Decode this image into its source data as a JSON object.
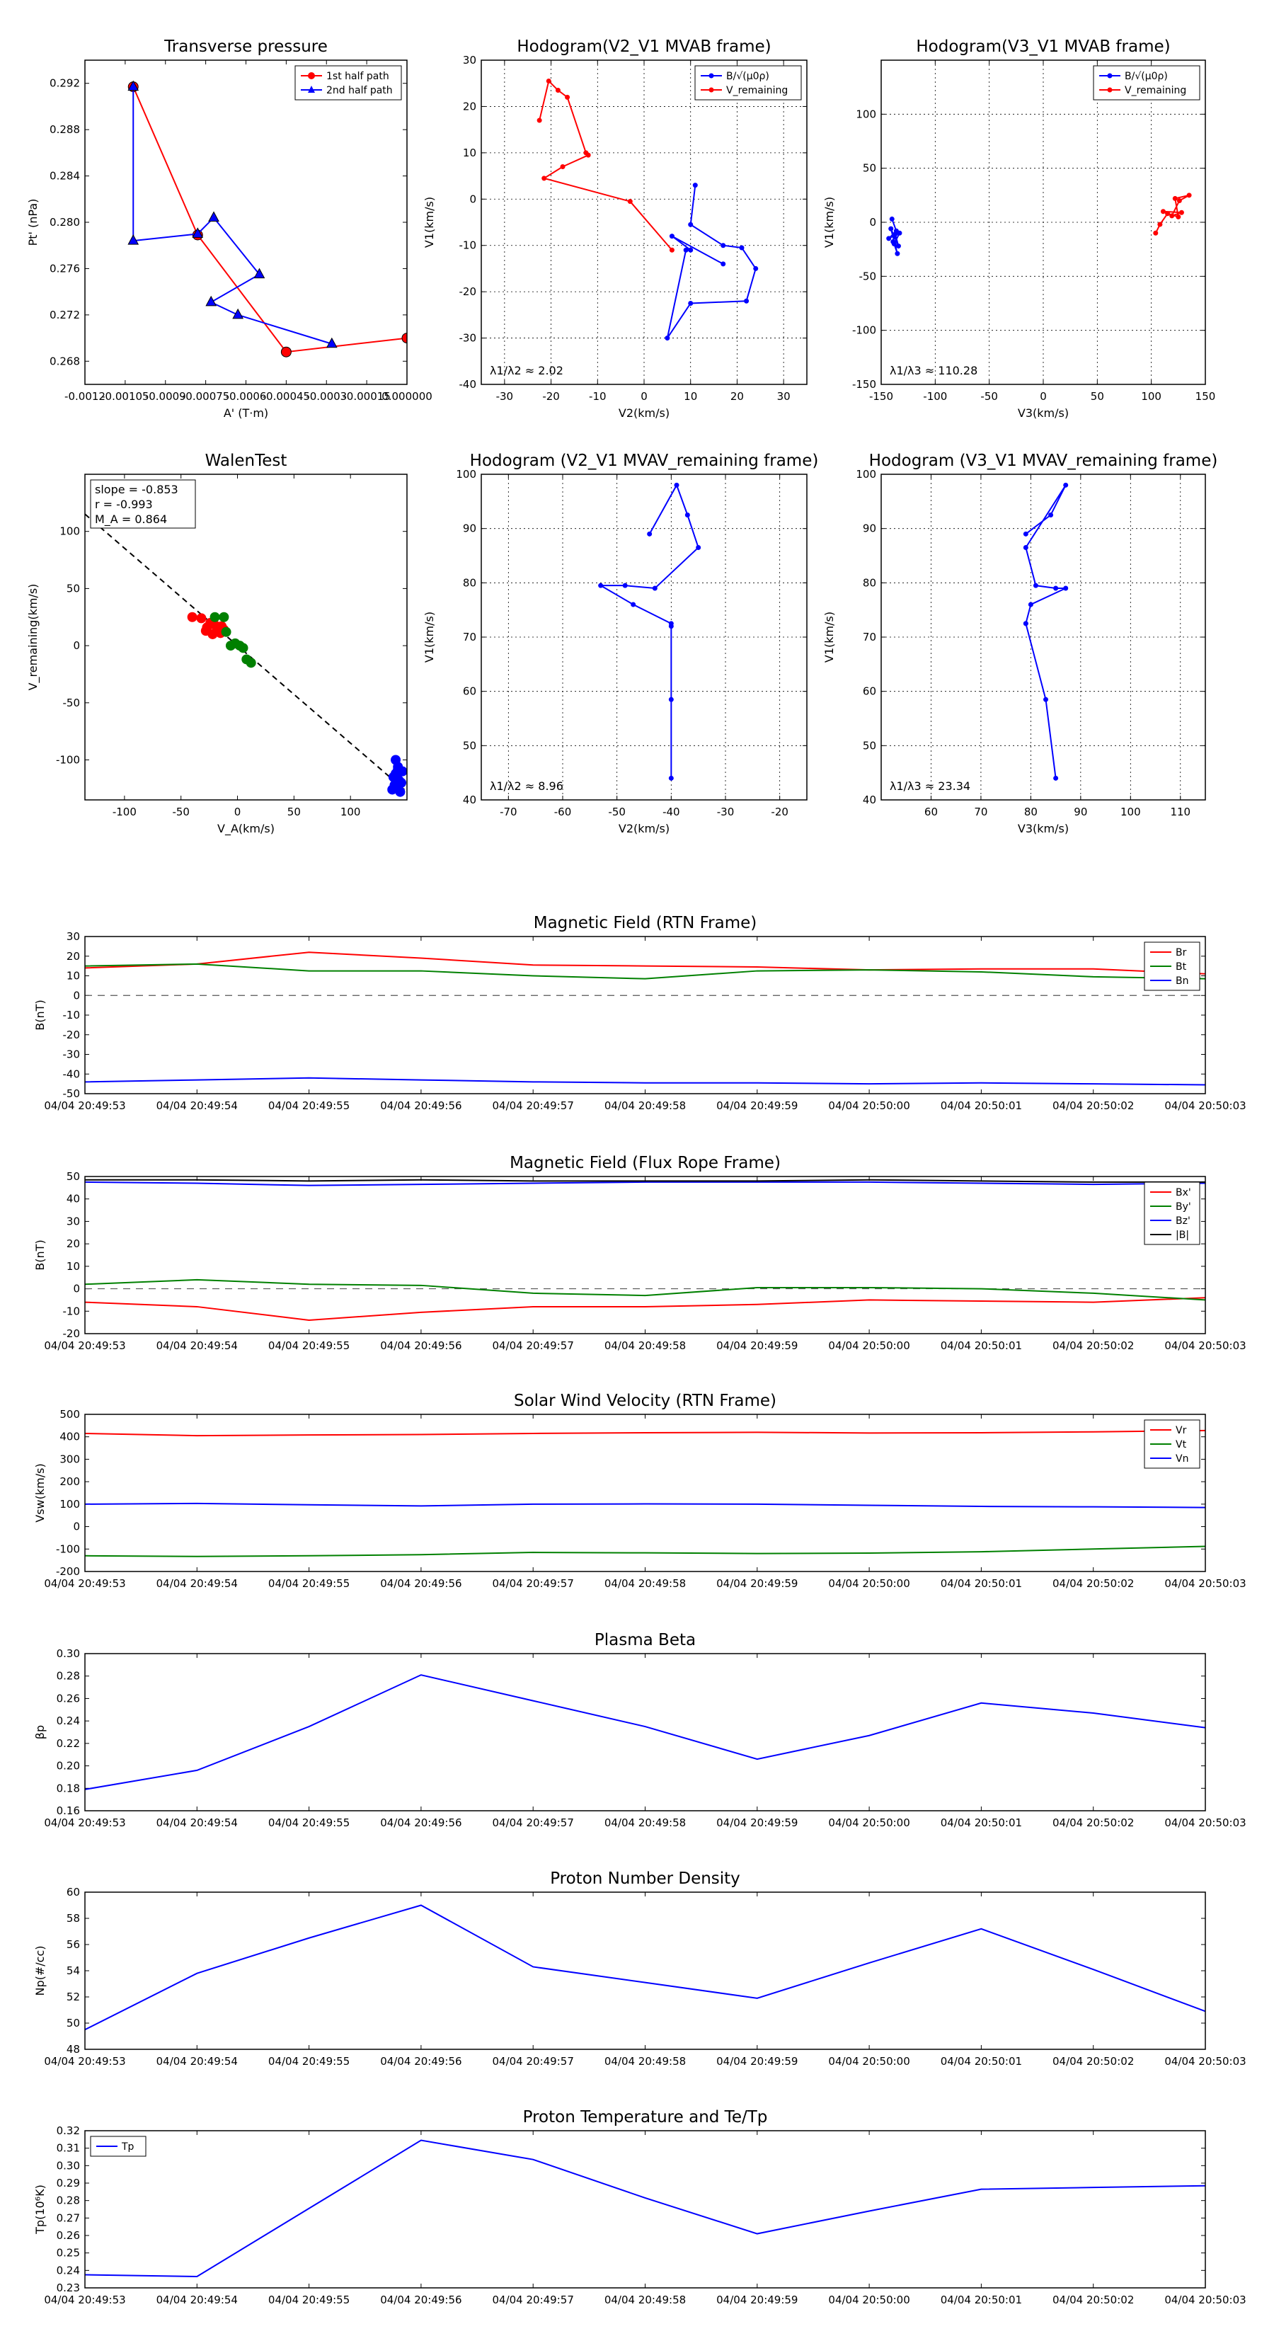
{
  "chart_data": [
    {
      "id": "tp",
      "type": "line",
      "title": "Transverse pressure",
      "xlabel": "A' (T·m)",
      "ylabel": "Pt' (nPa)",
      "xlim": [
        -0.0012,
        0.0
      ],
      "ylim": [
        0.266,
        0.294
      ],
      "xticks": [
        -0.0012,
        -0.00105,
        -0.0009,
        -0.00075,
        -0.0006,
        -0.00045,
        -0.0003,
        -0.00015,
        0.0
      ],
      "xtick_labels": [
        "-0.0012",
        "-0.00105",
        "-0.0009",
        "-0.00075",
        "-0.0006",
        "-0.00045",
        "-0.0003",
        "-0.00015",
        "0.000000"
      ],
      "yticks": [
        0.268,
        0.272,
        0.276,
        0.28,
        0.284,
        0.288,
        0.292
      ],
      "ytick_labels": [
        "0.268",
        "0.272",
        "0.276",
        "0.280",
        "0.284",
        "0.288",
        "0.292"
      ],
      "legend": "top-right",
      "series": [
        {
          "name": "1st half path",
          "color": "#ff0000",
          "marker": "circle",
          "x": [
            -0.00102,
            -0.00078,
            -0.00045,
            0.0
          ],
          "y": [
            0.2917,
            0.2789,
            0.2688,
            0.27
          ]
        },
        {
          "name": "2nd half path",
          "color": "#0000ff",
          "marker": "triangle",
          "x": [
            -0.00102,
            -0.00102,
            -0.00078,
            -0.00072,
            -0.00055,
            -0.00073,
            -0.00063,
            -0.00028
          ],
          "y": [
            0.2917,
            0.2784,
            0.279,
            0.2804,
            0.2755,
            0.2731,
            0.272,
            0.2695
          ]
        }
      ]
    },
    {
      "id": "h1",
      "type": "line",
      "title": "Hodogram(V2_V1 MVAB frame)",
      "xlabel": "V2(km/s)",
      "ylabel": "V1(km/s)",
      "xlim": [
        -35,
        35
      ],
      "ylim": [
        -40,
        30
      ],
      "xticks": [
        -30,
        -20,
        -10,
        0,
        10,
        20,
        30
      ],
      "yticks": [
        -40,
        -30,
        -20,
        -10,
        0,
        10,
        20,
        30
      ],
      "annotation": "λ1/λ2 ≈ 2.02",
      "legend": "top-right",
      "series": [
        {
          "name": "B/√(μ0ρ)",
          "color": "#0000ff",
          "x": [
            11,
            10,
            17,
            21,
            24,
            22,
            10,
            5,
            9,
            10,
            6,
            17
          ],
          "y": [
            3,
            -5.5,
            -10,
            -10.5,
            -15,
            -22,
            -22.5,
            -30,
            -11,
            -11,
            -8,
            -14
          ]
        },
        {
          "name": "V_remaining",
          "color": "#ff0000",
          "x": [
            -22.5,
            -20.5,
            -18.5,
            -16.5,
            -12.5,
            -12,
            -17.5,
            -21.5,
            -3,
            6
          ],
          "y": [
            17,
            25.5,
            23.5,
            22,
            10,
            9.5,
            7,
            4.5,
            -0.5,
            -11
          ]
        }
      ]
    },
    {
      "id": "h2",
      "type": "line",
      "title": "Hodogram(V3_V1 MVAB frame)",
      "xlabel": "V3(km/s)",
      "ylabel": "V1(km/s)",
      "xlim": [
        -150,
        150
      ],
      "ylim": [
        -150,
        150
      ],
      "xticks": [
        -150,
        -100,
        -50,
        0,
        50,
        100,
        150
      ],
      "yticks": [
        -150,
        -100,
        -50,
        0,
        50,
        100
      ],
      "annotation": "λ1/λ3 ≈ 110.28",
      "legend": "top-right",
      "series": [
        {
          "name": "B/√(μ0ρ)",
          "color": "#0000ff",
          "x": [
            -140,
            -136,
            -143,
            -133,
            -138,
            -135,
            -141,
            -134,
            -137,
            -139
          ],
          "y": [
            3,
            -8,
            -15,
            -10,
            -20,
            -29,
            -6,
            -22,
            -11,
            -18
          ]
        },
        {
          "name": "V_remaining",
          "color": "#ff0000",
          "x": [
            104,
            108,
            115,
            125,
            122,
            135,
            126,
            119,
            128,
            111
          ],
          "y": [
            -10,
            -2,
            8,
            5,
            22,
            25,
            20,
            6,
            9,
            10
          ]
        }
      ]
    },
    {
      "id": "walen",
      "type": "scatter",
      "title": "WalenTest",
      "xlabel": "V_A(km/s)",
      "ylabel": "V_remaining(km/s)",
      "xlim": [
        -135,
        150
      ],
      "ylim": [
        -135,
        150
      ],
      "xticks": [
        -100,
        -50,
        0,
        50,
        100
      ],
      "yticks": [
        -100,
        -50,
        0,
        50,
        100
      ],
      "annotation_lines": [
        "slope = -0.853",
        "r = -0.993",
        "M_A = 0.864"
      ],
      "fit_slope": -0.853,
      "fit_intercept": 0,
      "series": [
        {
          "name": "red",
          "color": "#ff0000",
          "x": [
            -40,
            -32,
            -28,
            -24,
            -22,
            -18,
            -16,
            -14,
            -12,
            -27,
            -20,
            -15
          ],
          "y": [
            25,
            24,
            13,
            20,
            10,
            15,
            12,
            17,
            14,
            16,
            18,
            11
          ]
        },
        {
          "name": "green",
          "color": "#008000",
          "x": [
            -20,
            -10,
            -6,
            -2,
            2,
            5,
            8,
            12,
            -12
          ],
          "y": [
            25,
            12,
            0,
            2,
            0,
            -2,
            -12,
            -15,
            25
          ]
        },
        {
          "name": "blue",
          "color": "#0000ff",
          "x": [
            140,
            142,
            138,
            145,
            141,
            143,
            139,
            146,
            137,
            144,
            140,
            142
          ],
          "y": [
            -100,
            -108,
            -115,
            -120,
            -125,
            -118,
            -122,
            -110,
            -126,
            -128,
            -112,
            -106
          ]
        }
      ]
    },
    {
      "id": "h3",
      "type": "line",
      "title": "Hodogram (V2_V1 MVAV_remaining frame)",
      "xlabel": "V2(km/s)",
      "ylabel": "V1(km/s)",
      "xlim": [
        -75,
        -15
      ],
      "ylim": [
        40,
        100
      ],
      "xticks": [
        -70,
        -60,
        -50,
        -40,
        -30,
        -20
      ],
      "yticks": [
        40,
        50,
        60,
        70,
        80,
        90,
        100
      ],
      "annotation": "λ1/λ2 ≈ 8.96",
      "series": [
        {
          "name": "B",
          "color": "#0000ff",
          "x": [
            -44,
            -39,
            -37,
            -35,
            -43,
            -48.5,
            -53,
            -47,
            -40,
            -40,
            -40,
            -40
          ],
          "y": [
            89,
            98,
            92.5,
            86.5,
            79,
            79.5,
            79.5,
            76,
            72.5,
            72,
            58.5,
            44
          ]
        }
      ]
    },
    {
      "id": "h4",
      "type": "line",
      "title": "Hodogram (V3_V1 MVAV_remaining frame)",
      "xlabel": "V3(km/s)",
      "ylabel": "V1(km/s)",
      "xlim": [
        50,
        115
      ],
      "ylim": [
        40,
        100
      ],
      "xticks": [
        60,
        70,
        80,
        90,
        100,
        110
      ],
      "yticks": [
        40,
        50,
        60,
        70,
        80,
        90,
        100
      ],
      "annotation": "λ1/λ3 ≈ 23.34",
      "series": [
        {
          "name": "B",
          "color": "#0000ff",
          "x": [
            79,
            84,
            87,
            79,
            81,
            85,
            87,
            80,
            79,
            79,
            83,
            85
          ],
          "y": [
            89,
            92.5,
            98,
            86.5,
            79.5,
            79,
            79,
            76,
            72.5,
            72.5,
            58.5,
            44
          ]
        }
      ]
    },
    {
      "id": "ts1",
      "type": "line",
      "title": "Magnetic Field (RTN Frame)",
      "ylabel": "B(nT)",
      "ylim": [
        -50,
        30
      ],
      "yticks": [
        -50,
        -40,
        -30,
        -20,
        -10,
        0,
        10,
        20,
        30
      ],
      "zero_line": true,
      "legend": "top-right",
      "series": [
        {
          "name": "Br",
          "color": "#ff0000",
          "values": [
            14,
            16,
            22,
            19,
            15.5,
            15,
            14.5,
            13,
            13.5,
            13.5,
            11
          ]
        },
        {
          "name": "Bt",
          "color": "#008000",
          "values": [
            15,
            16,
            12.5,
            12.5,
            10,
            8.5,
            12.5,
            13,
            12,
            9.5,
            8.5
          ]
        },
        {
          "name": "Bn",
          "color": "#0000ff",
          "values": [
            -44,
            -43,
            -42,
            -43,
            -44,
            -44.5,
            -44.5,
            -45,
            -44.5,
            -45,
            -45.5
          ]
        }
      ]
    },
    {
      "id": "ts2",
      "type": "line",
      "title": "Magnetic Field (Flux Rope Frame)",
      "ylabel": "B(nT)",
      "ylim": [
        -20,
        50
      ],
      "yticks": [
        -20,
        -10,
        0,
        10,
        20,
        30,
        40,
        50
      ],
      "zero_line": true,
      "legend": "top-right",
      "series": [
        {
          "name": "Bx'",
          "color": "#ff0000",
          "values": [
            -6,
            -8,
            -14,
            -10.5,
            -8,
            -8,
            -7,
            -5,
            -5.5,
            -6,
            -4
          ]
        },
        {
          "name": "By'",
          "color": "#008000",
          "values": [
            2,
            4,
            2,
            1.5,
            -2,
            -3,
            0.5,
            0.5,
            0,
            -2,
            -5
          ]
        },
        {
          "name": "Bz'",
          "color": "#0000ff",
          "values": [
            47.5,
            47,
            46,
            46.5,
            47,
            47.5,
            47.5,
            47.5,
            47,
            46.5,
            47
          ]
        },
        {
          "name": "|B|",
          "color": "#000000",
          "values": [
            48.5,
            48.5,
            48,
            48.5,
            48,
            48,
            48,
            48.5,
            48,
            47.5,
            47.5
          ]
        }
      ]
    },
    {
      "id": "ts3",
      "type": "line",
      "title": "Solar Wind Velocity (RTN Frame)",
      "ylabel": "Vsw(km/s)",
      "ylim": [
        -200,
        500
      ],
      "yticks": [
        -200,
        -100,
        0,
        100,
        200,
        300,
        400,
        500
      ],
      "legend": "top-right",
      "series": [
        {
          "name": "Vr",
          "color": "#ff0000",
          "values": [
            415,
            405,
            408,
            410,
            415,
            418,
            420,
            417,
            418,
            422,
            428
          ]
        },
        {
          "name": "Vt",
          "color": "#008000",
          "values": [
            -130,
            -133,
            -130,
            -125,
            -115,
            -117,
            -120,
            -118,
            -112,
            -100,
            -88
          ]
        },
        {
          "name": "Vn",
          "color": "#0000ff",
          "values": [
            100,
            103,
            97,
            92,
            100,
            101,
            100,
            95,
            90,
            88,
            85
          ]
        }
      ]
    },
    {
      "id": "ts4",
      "type": "line",
      "title": "Plasma Beta",
      "ylabel": "βp",
      "ylim": [
        0.16,
        0.3
      ],
      "yticks": [
        0.16,
        0.18,
        0.2,
        0.22,
        0.24,
        0.26,
        0.28,
        0.3
      ],
      "ytick_labels": [
        "0.16",
        "0.18",
        "0.20",
        "0.22",
        "0.24",
        "0.26",
        "0.28",
        "0.30"
      ],
      "series": [
        {
          "name": "beta",
          "color": "#0000ff",
          "values": [
            0.179,
            0.196,
            0.235,
            0.281,
            0.258,
            0.235,
            0.206,
            0.227,
            0.256,
            0.247,
            0.234
          ]
        }
      ]
    },
    {
      "id": "ts5",
      "type": "line",
      "title": "Proton Number Density",
      "ylabel": "Np(#/cc)",
      "ylim": [
        48,
        60
      ],
      "yticks": [
        48,
        50,
        52,
        54,
        56,
        58,
        60
      ],
      "series": [
        {
          "name": "Np",
          "color": "#0000ff",
          "values": [
            49.5,
            53.8,
            56.5,
            59,
            54.3,
            53.1,
            51.9,
            54.6,
            57.2,
            54.1,
            50.9
          ]
        }
      ]
    },
    {
      "id": "ts6",
      "type": "line",
      "title": "Proton Temperature and Te/Tp",
      "ylabel": "Tp(10⁶K)",
      "ylim": [
        0.23,
        0.32
      ],
      "yticks": [
        0.23,
        0.24,
        0.25,
        0.26,
        0.27,
        0.28,
        0.29,
        0.3,
        0.31,
        0.32
      ],
      "ytick_labels": [
        "0.23",
        "0.24",
        "0.25",
        "0.26",
        "0.27",
        "0.28",
        "0.29",
        "0.30",
        "0.31",
        "0.32"
      ],
      "legend": "top-left",
      "series": [
        {
          "name": "Tp",
          "color": "#0000ff",
          "values": [
            0.2375,
            0.2365,
            0.2755,
            0.3145,
            0.3035,
            0.2815,
            0.261,
            0.274,
            0.2865,
            0.2875,
            0.2885
          ]
        }
      ]
    }
  ],
  "time_labels": [
    "04/04 20:49:53",
    "04/04 20:49:54",
    "04/04 20:49:55",
    "04/04 20:49:56",
    "04/04 20:49:57",
    "04/04 20:49:58",
    "04/04 20:49:59",
    "04/04 20:50:00",
    "04/04 20:50:01",
    "04/04 20:50:02",
    "04/04 20:50:03"
  ]
}
